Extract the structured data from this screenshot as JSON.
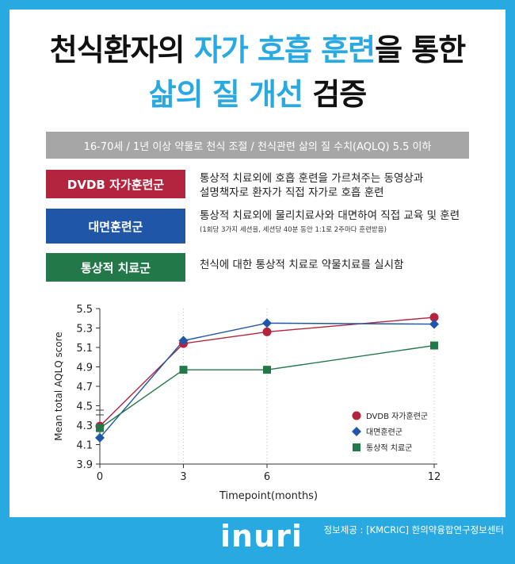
{
  "header": {
    "title_line1_prefix": "천식환자의",
    "title_line1_highlight": "자가 호흡 훈련",
    "title_line1_suffix": "을 통한",
    "title_line2_highlight": "삶의 질 개선",
    "title_line2_suffix": "검증"
  },
  "criteria": "16-70세 / 1년 이상 약물로 천식 조절 / 천식관련 삶의 질 수치(AQLQ) 5.5 이하",
  "groups": [
    {
      "label": "DVDB 자가훈련군",
      "color": "#b3243e",
      "desc_line1": "통상적 치료외에  호흡 훈련을 가르쳐주는 동영상과",
      "desc_line2": "설명책자로 환자가 직접 자가로 호흡 훈련"
    },
    {
      "label": "대면훈련군",
      "color": "#1f56a7",
      "desc_line1": "통상적 치료외에 물리치료사와 대면하여 직접 교육 및 훈련",
      "desc_note": "(1회당 3가지 세션을, 세션당 40분 동안 1:1로 2주마다 훈련받음)"
    },
    {
      "label": "통상적 치료군",
      "color": "#23784a",
      "desc_line1": "천식에 대한 통상적 치료로 약물치료를 실시함"
    }
  ],
  "chart_data": {
    "type": "line",
    "xlabel": "Timepoint(months)",
    "ylabel": "Mean total AQLQ score",
    "x": [
      0,
      3,
      6,
      12
    ],
    "x_tick_labels": [
      "0",
      "3",
      "6",
      "12"
    ],
    "y_ticks": [
      "3.9",
      "4.1",
      "4.3",
      "4.5",
      "4.7",
      "4.9",
      "5.1",
      "5.3",
      "5.5"
    ],
    "ylim": [
      3.9,
      5.5
    ],
    "grid": "vertical dotted at x ticks",
    "legend_position": "right-bottom",
    "series": [
      {
        "name": "DVDB 자가훈련군",
        "marker": "circle",
        "color": "#b3243e",
        "values": [
          4.29,
          5.14,
          5.26,
          5.41
        ]
      },
      {
        "name": "대면훈련군",
        "marker": "diamond",
        "color": "#1f56a7",
        "values": [
          4.17,
          5.17,
          5.35,
          5.34
        ]
      },
      {
        "name": "통상적 치료군",
        "marker": "square",
        "color": "#23784a",
        "values": [
          4.27,
          4.87,
          4.87,
          5.12
        ]
      }
    ]
  },
  "footer": {
    "logo": "inuri",
    "credit": "정보제공 : [KMCRIC] 한의약융합연구정보센터"
  }
}
